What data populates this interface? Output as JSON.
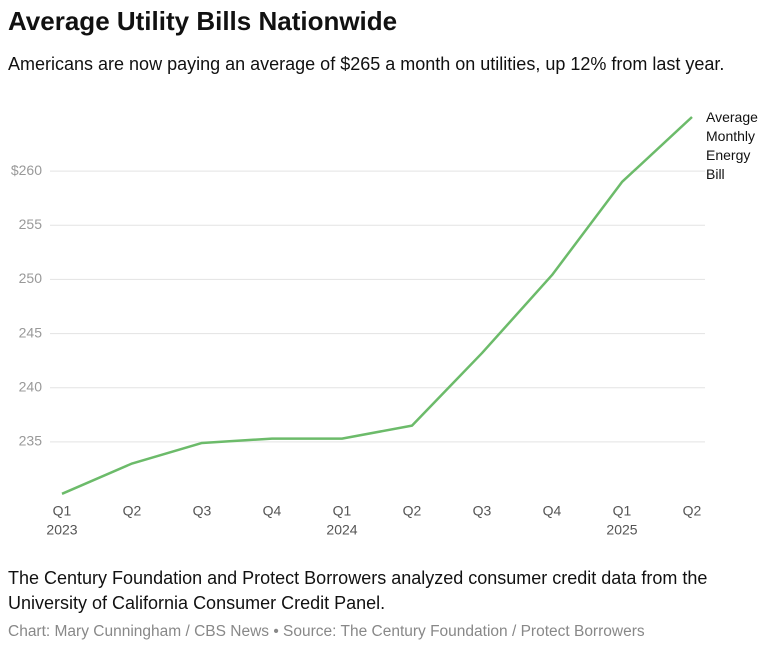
{
  "chart_data": {
    "type": "line",
    "title": "Average Utility Bills Nationwide",
    "subtitle": "Americans are now paying an average of $265 a month on utilities, up 12%  from last year.",
    "categories": [
      "Q1",
      "Q2",
      "Q3",
      "Q4",
      "Q1",
      "Q2",
      "Q3",
      "Q4",
      "Q1",
      "Q2"
    ],
    "year_labels": [
      "2023",
      null,
      null,
      null,
      "2024",
      null,
      null,
      null,
      "2025",
      null
    ],
    "series": [
      {
        "name": "Average Monthly Energy Bill",
        "color": "#6cbb6a",
        "values": [
          230.2,
          233.0,
          234.9,
          235.3,
          235.3,
          236.5,
          243.2,
          250.4,
          259.0,
          265.0
        ]
      }
    ],
    "ylim": [
      230,
      265
    ],
    "yticks": [
      235,
      240,
      245,
      250,
      255,
      {
        "value": 260,
        "label": "$260"
      }
    ],
    "grid": true,
    "note": "The Century Foundation and Protect Borrowers analyzed consumer credit data from the University of California Consumer Credit Panel.",
    "source": "Chart: Mary Cunningham / CBS News • Source: The Century Foundation / Protect Borrowers"
  }
}
